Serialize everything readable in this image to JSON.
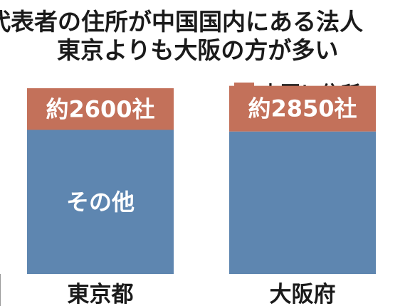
{
  "chart_data": {
    "type": "bar",
    "stacked": true,
    "title_lines": [
      "代表者の住所が中国国内にある法人",
      "東京よりも大阪の方が多い"
    ],
    "categories": [
      "東京都",
      "大阪府"
    ],
    "series": [
      {
        "key": "other",
        "label": "その他",
        "color": "#5e86b0",
        "values": [
          9000,
          8900
        ]
      },
      {
        "key": "china",
        "name": "中国に住所",
        "color": "#c3715a",
        "values": [
          2600,
          2850
        ],
        "value_labels": [
          "約2600社",
          "約2850社"
        ]
      }
    ],
    "ylim": [
      0,
      11600
    ],
    "legend_position": "top-right",
    "grid": false
  }
}
